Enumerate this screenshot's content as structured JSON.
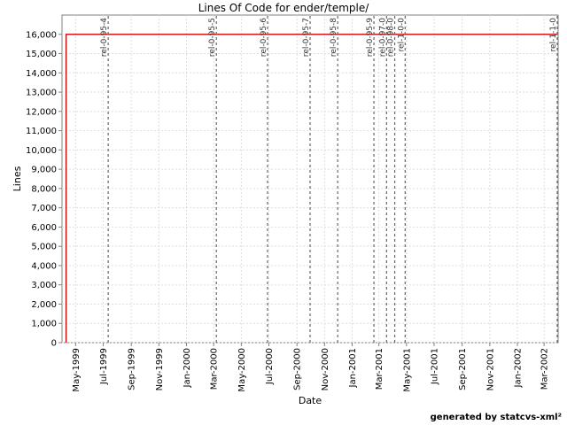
{
  "chart_data": {
    "type": "line",
    "title": "Lines Of Code for ender/temple/",
    "xlabel": "Date",
    "ylabel": "Lines",
    "xlim": [
      "1999-04-01",
      "2002-04-01"
    ],
    "ylim": [
      0,
      17000
    ],
    "y_ticks": [
      0,
      1000,
      2000,
      3000,
      4000,
      5000,
      6000,
      7000,
      8000,
      9000,
      10000,
      11000,
      12000,
      13000,
      14000,
      15000,
      16000
    ],
    "y_tick_labels": [
      "0",
      "1,000",
      "2,000",
      "3,000",
      "4,000",
      "5,000",
      "6,000",
      "7,000",
      "8,000",
      "9,000",
      "10,000",
      "11,000",
      "12,000",
      "13,000",
      "14,000",
      "15,000",
      "16,000"
    ],
    "x_ticks": [
      {
        "date": "1999-05-01",
        "label": "May-1999"
      },
      {
        "date": "1999-07-01",
        "label": "Jul-1999"
      },
      {
        "date": "1999-09-01",
        "label": "Sep-1999"
      },
      {
        "date": "1999-11-01",
        "label": "Nov-1999"
      },
      {
        "date": "2000-01-01",
        "label": "Jan-2000"
      },
      {
        "date": "2000-03-01",
        "label": "Mar-2000"
      },
      {
        "date": "2000-05-01",
        "label": "May-2000"
      },
      {
        "date": "2000-07-01",
        "label": "Jul-2000"
      },
      {
        "date": "2000-09-01",
        "label": "Sep-2000"
      },
      {
        "date": "2000-11-01",
        "label": "Nov-2000"
      },
      {
        "date": "2001-01-01",
        "label": "Jan-2001"
      },
      {
        "date": "2001-03-01",
        "label": "Mar-2001"
      },
      {
        "date": "2001-05-01",
        "label": "May-2001"
      },
      {
        "date": "2001-07-01",
        "label": "Jul-2001"
      },
      {
        "date": "2001-09-01",
        "label": "Sep-2001"
      },
      {
        "date": "2001-11-01",
        "label": "Nov-2001"
      },
      {
        "date": "2002-01-01",
        "label": "Jan-2002"
      },
      {
        "date": "2002-03-01",
        "label": "Mar-2002"
      }
    ],
    "grid": true,
    "series": [
      {
        "color": "#cc0000",
        "points": [
          {
            "x": "1999-04-10",
            "y": 0
          },
          {
            "x": "1999-04-10",
            "y": 16000
          },
          {
            "x": "2002-03-31",
            "y": 16000
          }
        ]
      }
    ],
    "releases": [
      {
        "label": "rel-0-95-4",
        "date": "1999-07-12"
      },
      {
        "label": "rel-0-95-5",
        "date": "2000-03-07"
      },
      {
        "label": "rel-0-95-6",
        "date": "2000-06-28"
      },
      {
        "label": "rel-0-95-7",
        "date": "2000-09-30"
      },
      {
        "label": "rel-0-95-8",
        "date": "2000-11-30"
      },
      {
        "label": "rel-0-95-9",
        "date": "2001-02-18"
      },
      {
        "label": "rel-0-97-0",
        "date": "2001-03-18"
      },
      {
        "label": "rel-0-98-0",
        "date": "2001-04-05"
      },
      {
        "label": "rel-1-0-0",
        "date": "2001-04-28"
      },
      {
        "label": "rel-1-1-0",
        "date": "2002-03-30"
      }
    ]
  },
  "footer": "generated by statcvs-xml²",
  "colors": {
    "line": "#cc0000",
    "grid": "#dddddd",
    "release": "#666666",
    "axis": "#808080"
  }
}
